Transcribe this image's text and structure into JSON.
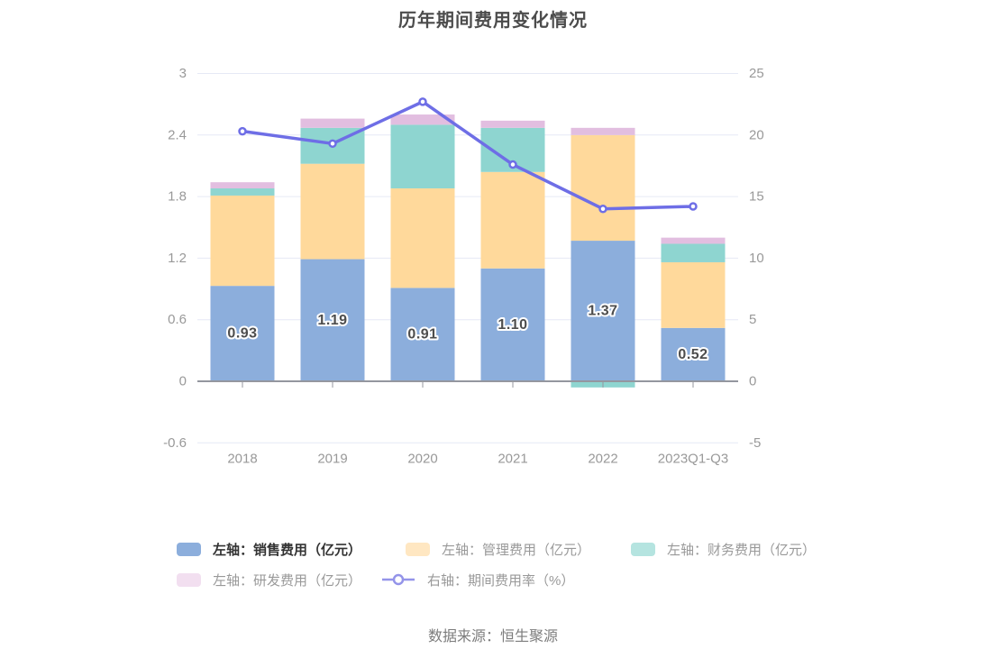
{
  "title": "历年期间费用变化情况",
  "source_note": "数据来源：恒生聚源",
  "colors": {
    "sales_bar": "#8CAEDC",
    "management_bar": "#FFD99B",
    "financial_bar": "#8ED5D0",
    "rd_bar": "#E2BEE0",
    "rate_line": "#6E6EE6",
    "grid": "#E6E9F5",
    "axis": "#94979F",
    "tick_label": "#999999",
    "bar_label": "#4D4D4D"
  },
  "legend": {
    "rows": [
      [
        {
          "label": "左轴：销售费用（亿元）",
          "swatch": "#8CAEDC",
          "text_color": "#333333"
        },
        {
          "label": "左轴：管理费用（亿元）",
          "swatch": "#FFE7C2",
          "text_color": "#999999"
        },
        {
          "label": "左轴：财务费用（亿元）",
          "swatch": "#B5E4E0",
          "text_color": "#999999"
        }
      ],
      [
        {
          "label": "左轴：研发费用（亿元）",
          "swatch": "#F2DFF0",
          "text_color": "#999999"
        },
        {
          "label": "右轴：期间费用率（%）",
          "swatch": "#9494E9",
          "text_color": "#999999"
        }
      ]
    ]
  },
  "chart_data": {
    "type": "bar",
    "subtype": "stacked bars with overlay line (dual axis)",
    "categories": [
      "2018",
      "2019",
      "2020",
      "2021",
      "2022",
      "2023Q1-Q3"
    ],
    "series": [
      {
        "id": "sales",
        "name": "左轴：销售费用（亿元）",
        "type": "bar",
        "stack": true,
        "axis": "left",
        "color": "#8CAEDC",
        "values": [
          0.93,
          1.19,
          0.91,
          1.1,
          1.37,
          0.52
        ],
        "data_labels": [
          "0.93",
          "1.19",
          "0.91",
          "1.10",
          "1.37",
          "0.52"
        ]
      },
      {
        "id": "management",
        "name": "左轴：管理费用（亿元）",
        "type": "bar",
        "stack": true,
        "axis": "left",
        "color": "#FFD99B",
        "values": [
          0.88,
          0.93,
          0.97,
          0.94,
          1.03,
          0.64
        ]
      },
      {
        "id": "financial",
        "name": "左轴：财务费用（亿元）",
        "type": "bar",
        "stack": true,
        "axis": "left",
        "color": "#8ED5D0",
        "values": [
          0.07,
          0.35,
          0.62,
          0.43,
          -0.06,
          0.18
        ]
      },
      {
        "id": "rd",
        "name": "左轴：研发费用（亿元）",
        "type": "bar",
        "stack": true,
        "axis": "left",
        "color": "#E2BEE0",
        "values": [
          0.06,
          0.09,
          0.1,
          0.07,
          0.07,
          0.06
        ]
      },
      {
        "id": "rate",
        "name": "右轴：期间费用率（%）",
        "type": "line",
        "axis": "right",
        "color": "#6E6EE6",
        "values": [
          20.3,
          19.3,
          22.7,
          17.6,
          14.0,
          14.2
        ]
      }
    ],
    "left_axis": {
      "min": -0.6,
      "max": 3,
      "ticks": [
        3,
        2.4,
        1.8,
        1.2,
        0.6,
        0,
        -0.6
      ]
    },
    "right_axis": {
      "min": -5,
      "max": 25,
      "ticks": [
        25,
        20,
        15,
        10,
        5,
        0,
        -5
      ]
    },
    "grid": true,
    "legend_position": "bottom",
    "title": "历年期间费用变化情况"
  }
}
